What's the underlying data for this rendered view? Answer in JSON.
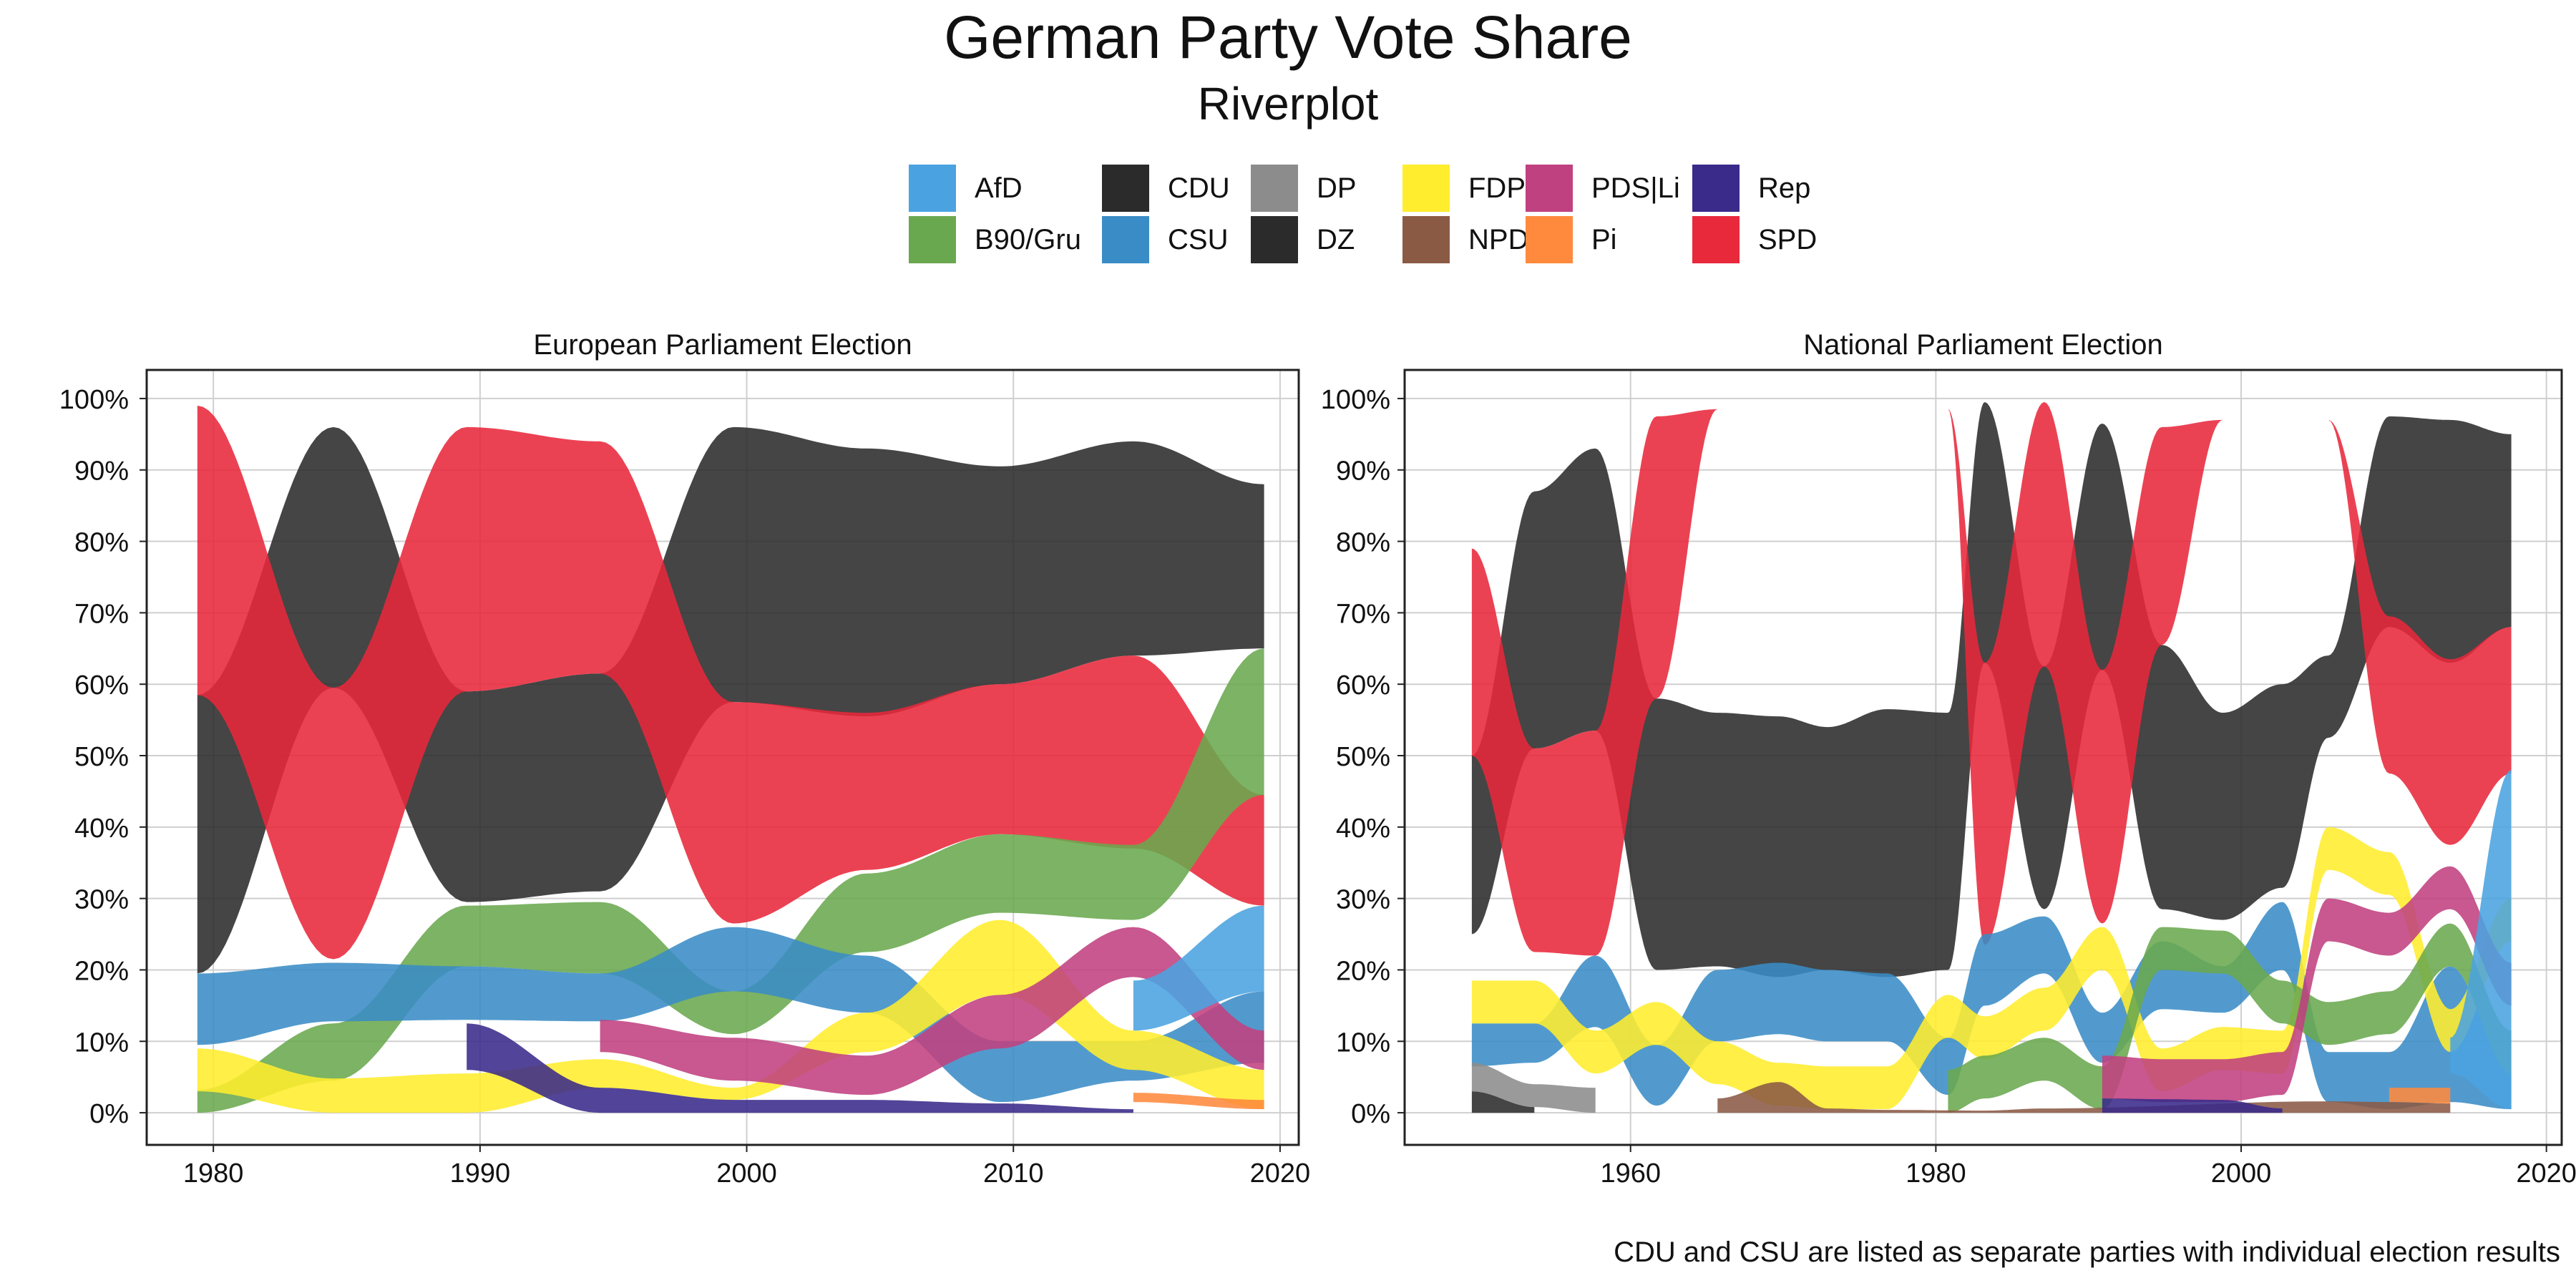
{
  "title": "German Party Vote Share",
  "subtitle": "Riverplot",
  "caption": "CDU and CSU are listed as separate parties with individual election results",
  "legend": [
    {
      "name": "AfD",
      "color": "#4aa3e0"
    },
    {
      "name": "B90/Gru",
      "color": "#6aa84f"
    },
    {
      "name": "CDU",
      "color": "#2b2b2b"
    },
    {
      "name": "CSU",
      "color": "#3a8cc6"
    },
    {
      "name": "DP",
      "color": "#8c8c8c"
    },
    {
      "name": "DZ",
      "color": "#2b2b2b"
    },
    {
      "name": "FDP",
      "color": "#ffed2e"
    },
    {
      "name": "NPD",
      "color": "#8b5a45"
    },
    {
      "name": "PDS|Li",
      "color": "#c0417f"
    },
    {
      "name": "Pi",
      "color": "#ff8a3d"
    },
    {
      "name": "Rep",
      "color": "#3a2a8a"
    },
    {
      "name": "SPD",
      "color": "#e8283b"
    }
  ],
  "chart_data": [
    {
      "type": "area",
      "title": "European Parliament Election",
      "xlim": [
        1977.5,
        2020.7
      ],
      "ylim": [
        -4.5,
        104
      ],
      "xticks": [
        1980,
        1990,
        2000,
        2010,
        2020
      ],
      "yticks": [
        0,
        10,
        20,
        30,
        40,
        50,
        60,
        70,
        80,
        90,
        100
      ],
      "ytick_labels": [
        "0%",
        "10%",
        "20%",
        "30%",
        "40%",
        "50%",
        "60%",
        "70%",
        "80%",
        "90%",
        "100%"
      ],
      "series": [
        {
          "name": "CDU",
          "x": [
            1979.4,
            1984.5,
            1989.5,
            1994.5,
            1999.5,
            2004.5,
            2009.5,
            2014.5,
            2019.4
          ],
          "bottom": [
            19.5,
            59.5,
            29.5,
            31,
            57.5,
            55.5,
            60,
            64,
            65
          ],
          "top": [
            58.5,
            96,
            59,
            61.5,
            96,
            93,
            90.5,
            94,
            88
          ]
        },
        {
          "name": "SPD",
          "x": [
            1979.4,
            1984.5,
            1989.5,
            1994.5,
            1999.5,
            2004.5,
            2009.5,
            2014.5,
            2019.4
          ],
          "bottom": [
            58.5,
            21.5,
            59,
            61.5,
            26.5,
            34,
            39,
            37,
            29
          ],
          "top": [
            99,
            59.5,
            96,
            94,
            57.5,
            56,
            60,
            64,
            44.5
          ]
        },
        {
          "name": "B90/Gru",
          "x": [
            1979.4,
            1984.5,
            1989.5,
            1994.5,
            1999.5,
            2004.5,
            2009.5,
            2014.5,
            2019.4
          ],
          "bottom": [
            0,
            4.5,
            20.5,
            19.5,
            11,
            22.5,
            28,
            27,
            44.5
          ],
          "top": [
            3.2,
            12.5,
            29,
            29.5,
            17,
            33.5,
            39,
            37.5,
            65
          ]
        },
        {
          "name": "CSU",
          "x": [
            1979.4,
            1984.5,
            1989.5,
            1994.5,
            1999.5,
            2004.5,
            2009.5,
            2014.5,
            2019.4
          ],
          "bottom": [
            9.5,
            12.8,
            13,
            12.8,
            17,
            14,
            1.5,
            4.5,
            7
          ],
          "top": [
            19.5,
            21,
            20.5,
            19.5,
            26,
            22,
            10,
            10,
            17
          ]
        },
        {
          "name": "FDP",
          "x": [
            1979.4,
            1984.5,
            1989.5,
            1994.5,
            1999.5,
            2004.5,
            2009.5,
            2014.5,
            2019.4
          ],
          "bottom": [
            3,
            0,
            0,
            3.5,
            1.8,
            8.5,
            16.5,
            6,
            0.5
          ],
          "top": [
            9,
            4.8,
            5.5,
            7.5,
            3.5,
            14,
            27,
            11.5,
            6
          ]
        },
        {
          "name": "PDS|Li",
          "x": [
            1994.5,
            1999.5,
            2004.5,
            2009.5,
            2014.5,
            2019.4
          ],
          "bottom": [
            8.5,
            4.5,
            2.5,
            9,
            19,
            6
          ],
          "top": [
            13,
            10.5,
            8,
            16.5,
            26,
            11.5
          ]
        },
        {
          "name": "Rep",
          "x": [
            1989.5,
            1994.5,
            1999.5,
            2004.5,
            2009.5,
            2014.5
          ],
          "bottom": [
            6,
            0,
            0,
            0,
            0,
            0
          ],
          "top": [
            12.5,
            3.5,
            1.8,
            1.8,
            1.3,
            0.5
          ]
        },
        {
          "name": "AfD",
          "x": [
            2014.5,
            2019.4
          ],
          "bottom": [
            11.5,
            17
          ],
          "top": [
            18.5,
            29
          ]
        },
        {
          "name": "Pi",
          "x": [
            2014.5,
            2019.4
          ],
          "bottom": [
            1.5,
            0.5
          ],
          "top": [
            2.8,
            1.8
          ]
        }
      ]
    },
    {
      "type": "area",
      "title": "National Parliament Election",
      "xlim": [
        1945.2,
        2021
      ],
      "ylim": [
        -4.5,
        104
      ],
      "xticks": [
        1960,
        1980,
        2000,
        2020
      ],
      "yticks": [
        0,
        10,
        20,
        30,
        40,
        50,
        60,
        70,
        80,
        90,
        100
      ],
      "ytick_labels": [
        "0%",
        "10%",
        "20%",
        "30%",
        "40%",
        "50%",
        "60%",
        "70%",
        "80%",
        "90%",
        "100%"
      ],
      "series": [
        {
          "name": "CDU",
          "x": [
            1949.6,
            1953.7,
            1957.7,
            1961.7,
            1965.7,
            1969.7,
            1972.9,
            1976.8,
            1980.8,
            1983.2,
            1987.1,
            1990.9,
            1994.8,
            1998.8,
            2002.7,
            2005.7,
            2009.7,
            2013.7,
            2017.7
          ],
          "bottom": [
            25,
            51,
            53.5,
            20,
            20.5,
            19,
            20,
            19,
            20,
            63,
            28.5,
            62,
            28.5,
            27,
            31.5,
            52.5,
            68,
            63,
            68
          ],
          "top": [
            50,
            87,
            93,
            58,
            56,
            55.5,
            54,
            56.5,
            56,
            99.5,
            62.5,
            96.5,
            65.5,
            56,
            60,
            64,
            97.5,
            97,
            95
          ]
        },
        {
          "name": "SPD",
          "x": [
            1949.6,
            1953.7,
            1957.7,
            1961.7,
            1965.7,
            1969.7,
            1972.9,
            1976.8,
            1980.8,
            1983.2,
            1987.1,
            1990.9,
            1994.8,
            1998.8,
            2002.7,
            2005.7,
            2009.7,
            2013.7,
            2017.7
          ],
          "bottom": [
            50,
            22.5,
            22,
            58,
            98.5,
            98.5,
            99,
            99,
            98.5,
            23.5,
            62.5,
            26.5,
            65.5,
            97,
            97.5,
            97,
            47.5,
            37.5,
            47.5
          ],
          "top": [
            79,
            51,
            53.5,
            97.5,
            98.5,
            98.5,
            99,
            99,
            98.5,
            63,
            99.5,
            62,
            96,
            97,
            97.5,
            97,
            69.5,
            63.5,
            68
          ]
        },
        {
          "name": "CSU",
          "x": [
            1949.6,
            1953.7,
            1957.7,
            1961.7,
            1965.7,
            1969.7,
            1972.9,
            1976.8,
            1980.8,
            1983.2,
            1987.1,
            1990.9,
            1994.8,
            1998.8,
            2002.7,
            2005.7,
            2009.7,
            2013.7,
            2017.7
          ],
          "bottom": [
            6.5,
            7,
            12,
            1,
            10,
            11,
            10,
            10,
            2.5,
            15,
            19.5,
            7,
            14.5,
            14,
            20,
            1.5,
            0.5,
            1.5,
            0.5
          ],
          "top": [
            12.5,
            12.5,
            22,
            9.5,
            20,
            21,
            20,
            19.5,
            10.5,
            25,
            27.5,
            14,
            24,
            20.5,
            29.5,
            8.5,
            8.5,
            20.5,
            5.5
          ]
        },
        {
          "name": "FDP",
          "x": [
            1949.6,
            1953.7,
            1957.7,
            1961.7,
            1965.7,
            1969.7,
            1972.9,
            1976.8,
            1980.8,
            1983.2,
            1987.1,
            1990.9,
            1994.8,
            1998.8,
            2002.7,
            2005.7,
            2009.7,
            2013.7,
            2017.7
          ],
          "bottom": [
            12.5,
            12.5,
            5.5,
            9.5,
            4,
            1,
            0.5,
            0.5,
            10.5,
            7.5,
            11.5,
            20,
            3,
            6,
            5.5,
            34,
            30.5,
            8.5,
            24
          ]
        },
        {
          "name": "B90/Gru",
          "x": [
            1980.8,
            1983.2,
            1987.1,
            1990.9,
            1994.8,
            1998.8,
            2002.7,
            2005.7,
            2009.7,
            2013.7,
            2017.7
          ],
          "bottom": [
            0,
            2,
            4.5,
            0.5,
            20,
            19.5,
            12.5,
            9.5,
            11,
            20.5,
            5.5
          ]
        },
        {
          "name": "PDS|Li",
          "x": [
            1990.9,
            1994.8,
            1998.8,
            2002.7,
            2005.7,
            2009.7,
            2013.7,
            2017.7
          ],
          "bottom": [
            2,
            1.5,
            1.5,
            2.5,
            24,
            22,
            28.5,
            15
          ]
        },
        {
          "name": "DZ",
          "x": [
            1949.6,
            1953.7
          ],
          "bottom": [
            0,
            0
          ],
          "top": [
            3,
            0.8
          ]
        },
        {
          "name": "DP",
          "x": [
            1949.6,
            1953.7,
            1957.7
          ],
          "bottom": [
            3,
            0.8,
            0
          ],
          "top": [
            7,
            4,
            3.5
          ]
        },
        {
          "name": "NPD",
          "x": [
            1965.7,
            1969.7,
            1972.9,
            1976.8,
            1983.2,
            1987.1,
            2005.7,
            2009.7,
            2013.7
          ],
          "bottom": [
            0,
            0,
            0,
            0,
            0,
            0,
            0,
            0,
            0
          ],
          "top": [
            2,
            4.3,
            0.6,
            0.4,
            0.3,
            0.6,
            1.6,
            1.5,
            1.3
          ]
        },
        {
          "name": "Rep",
          "x": [
            1990.9,
            1994.8,
            1998.8,
            2002.7
          ],
          "bottom": [
            0,
            0,
            0,
            0
          ],
          "top": [
            2,
            1.9,
            1.8,
            0.6
          ]
        },
        {
          "name": "Pi",
          "x": [
            2009.7,
            2013.7
          ],
          "bottom": [
            1.5,
            1.3
          ],
          "top": [
            3.5,
            3.5
          ]
        },
        {
          "name": "AfD",
          "x": [
            2013.7,
            2017.7
          ],
          "bottom": [
            5.5,
            0.5
          ],
          "top": [
            10.5,
            48
          ]
        }
      ]
    }
  ]
}
